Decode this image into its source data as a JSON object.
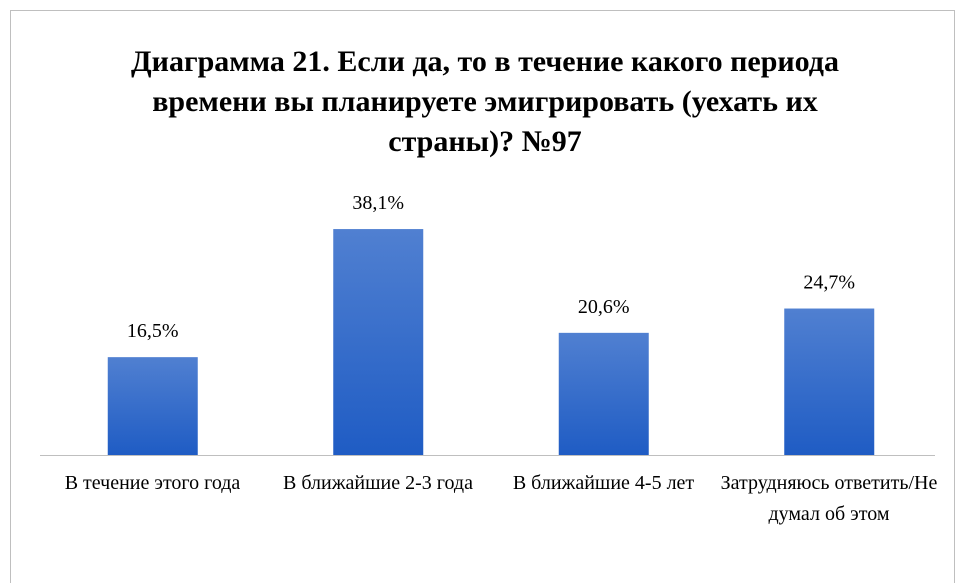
{
  "chart_data": {
    "type": "bar",
    "title": "Диаграмма 21. Если да, то в течение какого периода времени вы планируете эмигрировать (уехать их страны)? №97",
    "categories": [
      "В течение этого года",
      "В ближайшие 2-3 года",
      "В ближайшие 4-5 лет",
      "Затрудняюсь ответить/Не думал об этом"
    ],
    "values": [
      16.5,
      38.1,
      20.6,
      24.7
    ],
    "value_labels": [
      "16,5%",
      "38,1%",
      "20,6%",
      "24,7%"
    ],
    "color": "#1f5cc4"
  }
}
